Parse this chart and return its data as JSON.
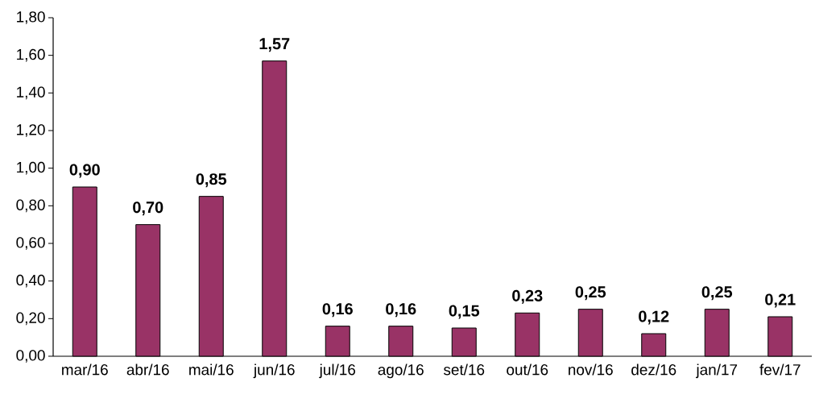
{
  "chart_data": {
    "type": "bar",
    "categories": [
      "mar/16",
      "abr/16",
      "mai/16",
      "jun/16",
      "jul/16",
      "ago/16",
      "set/16",
      "out/16",
      "nov/16",
      "dez/16",
      "jan/17",
      "fev/17"
    ],
    "values": [
      0.9,
      0.7,
      0.85,
      1.57,
      0.16,
      0.16,
      0.15,
      0.23,
      0.25,
      0.12,
      0.25,
      0.21
    ],
    "value_labels": [
      "0,90",
      "0,70",
      "0,85",
      "1,57",
      "0,16",
      "0,16",
      "0,15",
      "0,23",
      "0,25",
      "0,12",
      "0,25",
      "0,21"
    ],
    "color": "#993366",
    "ylim": [
      0,
      1.8
    ],
    "yticks": [
      {
        "value": 0,
        "label": "0,00"
      },
      {
        "value": 0.2,
        "label": "0,20"
      },
      {
        "value": 0.4,
        "label": "0,40"
      },
      {
        "value": 0.6,
        "label": "0,60"
      },
      {
        "value": 0.8,
        "label": "0,80"
      },
      {
        "value": 1.0,
        "label": "1,00"
      },
      {
        "value": 1.2,
        "label": "1,20"
      },
      {
        "value": 1.4,
        "label": "1,40"
      },
      {
        "value": 1.6,
        "label": "1,60"
      },
      {
        "value": 1.8,
        "label": "1,80"
      }
    ]
  }
}
